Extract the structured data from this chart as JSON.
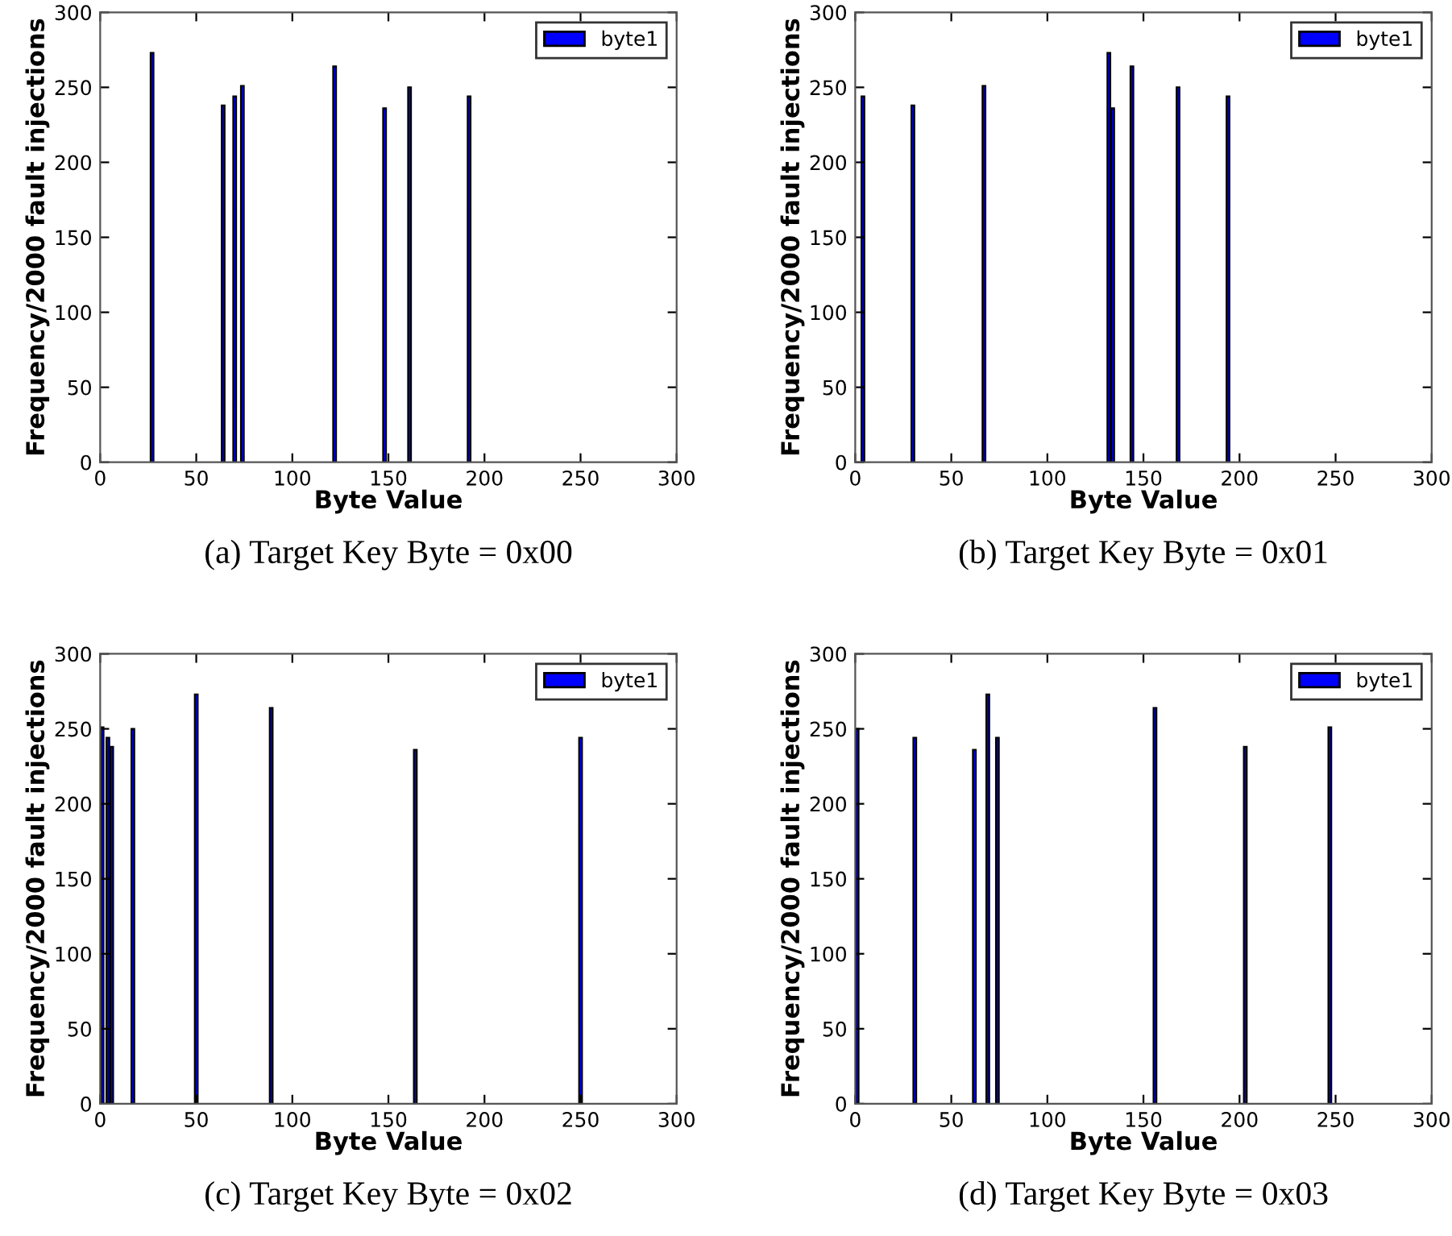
{
  "chart_data": [
    {
      "type": "bar",
      "xlabel": "Byte Value",
      "ylabel": "Frequency/2000 fault injections",
      "annotations": [
        "(a) Target Key Byte = 0x00"
      ],
      "xlim": [
        0,
        300
      ],
      "ylim": [
        0,
        300
      ],
      "xticks": [
        0,
        50,
        100,
        150,
        200,
        250,
        300
      ],
      "yticks": [
        0,
        50,
        100,
        150,
        200,
        250,
        300
      ],
      "legend": "top right",
      "grid": false,
      "series": [
        {
          "name": "byte1",
          "color": "#0000ff",
          "x": [
            27,
            64,
            70,
            74,
            122,
            148,
            161,
            192
          ],
          "values": [
            273,
            238,
            244,
            251,
            264,
            236,
            250,
            244
          ]
        }
      ]
    },
    {
      "type": "bar",
      "xlabel": "Byte Value",
      "ylabel": "Frequency/2000 fault injections",
      "annotations": [
        "(b) Target Key Byte = 0x01"
      ],
      "xlim": [
        0,
        300
      ],
      "ylim": [
        0,
        300
      ],
      "xticks": [
        0,
        50,
        100,
        150,
        200,
        250,
        300
      ],
      "yticks": [
        0,
        50,
        100,
        150,
        200,
        250,
        300
      ],
      "legend": "top right",
      "grid": false,
      "series": [
        {
          "name": "byte1",
          "color": "#0000ff",
          "x": [
            4,
            30,
            67,
            132,
            134,
            144,
            168,
            194
          ],
          "values": [
            244,
            238,
            251,
            273,
            236,
            264,
            250,
            244
          ]
        }
      ]
    },
    {
      "type": "bar",
      "xlabel": "Byte Value",
      "ylabel": "Frequency/2000 fault injections",
      "annotations": [
        "(c) Target Key Byte = 0x02"
      ],
      "xlim": [
        0,
        300
      ],
      "ylim": [
        0,
        300
      ],
      "xticks": [
        0,
        50,
        100,
        150,
        200,
        250,
        300
      ],
      "yticks": [
        0,
        50,
        100,
        150,
        200,
        250,
        300
      ],
      "legend": "top right",
      "grid": false,
      "series": [
        {
          "name": "byte1",
          "color": "#0000ff",
          "x": [
            1,
            4,
            6,
            17,
            50,
            89,
            164,
            250
          ],
          "values": [
            251,
            244,
            238,
            250,
            273,
            264,
            236,
            244
          ]
        }
      ]
    },
    {
      "type": "bar",
      "xlabel": "Byte Value",
      "ylabel": "Frequency/2000 fault injections",
      "annotations": [
        "(d) Target Key Byte = 0x03"
      ],
      "xlim": [
        0,
        300
      ],
      "ylim": [
        0,
        300
      ],
      "xticks": [
        0,
        50,
        100,
        150,
        200,
        250,
        300
      ],
      "yticks": [
        0,
        50,
        100,
        150,
        200,
        250,
        300
      ],
      "legend": "top right",
      "grid": false,
      "series": [
        {
          "name": "byte1",
          "color": "#0000ff",
          "x": [
            1,
            31,
            62,
            69,
            74,
            156,
            203,
            247
          ],
          "values": [
            250,
            244,
            236,
            273,
            244,
            264,
            238,
            251
          ]
        }
      ]
    }
  ]
}
